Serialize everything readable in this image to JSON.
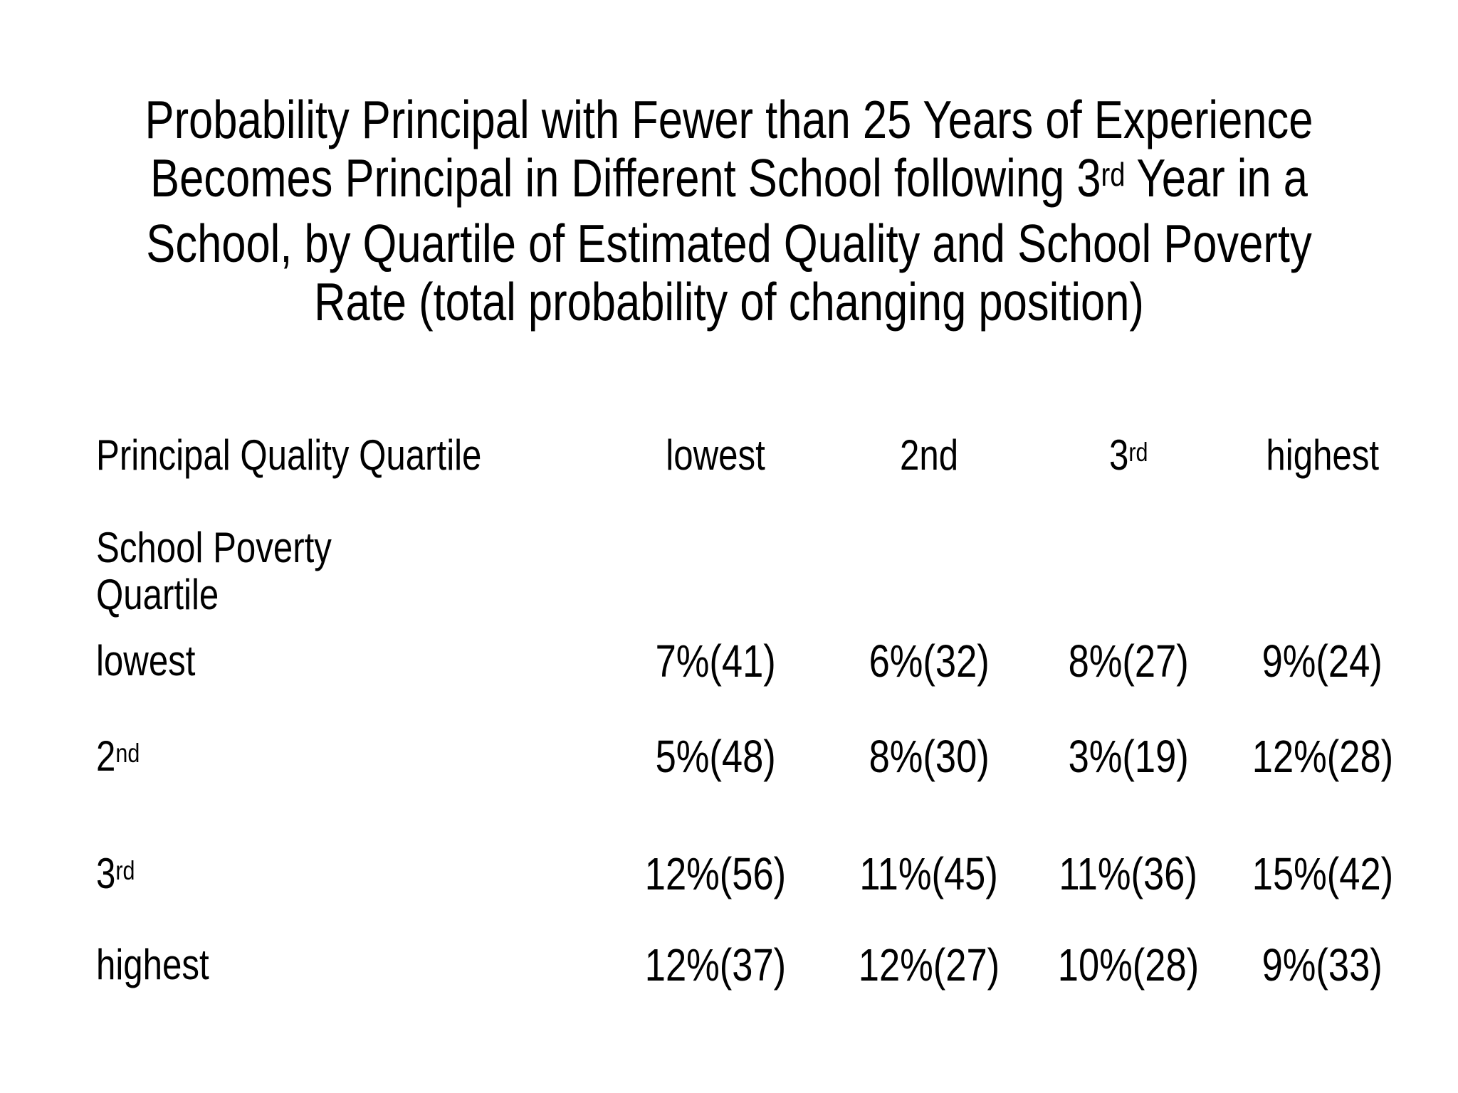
{
  "slide": {
    "background_color": "#ffffff",
    "text_color": "#000000"
  },
  "title": {
    "line1": "Probability Principal with Fewer than 25 Years of Experience",
    "line2_pre": "Becomes Principal in Different School following 3",
    "line2_sup": "rd",
    "line2_post": " Year in a",
    "line3": "School, by Quartile of Estimated Quality and School Poverty",
    "line4": "Rate (total probability of changing position)"
  },
  "table": {
    "header": {
      "row_label": "Principal Quality Quartile",
      "col1": "lowest",
      "col2": "2nd",
      "col3_base": "3",
      "col3_sup": "rd",
      "col4": "highest"
    },
    "row_group_label": {
      "line1": "School Poverty",
      "line2": "Quartile"
    },
    "rows": [
      {
        "label": "lowest",
        "label_sup": "",
        "values": [
          "7%(41)",
          "6%(32)",
          "8%(27)",
          "9%(24)"
        ]
      },
      {
        "label": "2",
        "label_sup": "nd",
        "values": [
          "5%(48)",
          "8%(30)",
          "3%(19)",
          "12%(28)"
        ]
      },
      {
        "label": "3",
        "label_sup": "rd",
        "values": [
          "12%(56)",
          "11%(45)",
          "11%(36)",
          "15%(42)"
        ]
      },
      {
        "label": "highest",
        "label_sup": "",
        "values": [
          "12%(37)",
          "12%(27)",
          "10%(28)",
          "9%(33)"
        ]
      }
    ]
  },
  "chart_data": {
    "type": "table",
    "title": "Probability Principal with Fewer than 25 Years of Experience Becomes Principal in Different School following 3rd Year in a School, by Quartile of Estimated Quality and School Poverty Rate (total probability of changing position)",
    "column_header_label": "Principal Quality Quartile",
    "columns": [
      "lowest",
      "2nd",
      "3rd",
      "highest"
    ],
    "row_header_label": "School Poverty Quartile",
    "row_categories": [
      "lowest",
      "2nd",
      "3rd",
      "highest"
    ],
    "cells": [
      [
        "7%(41)",
        "6%(32)",
        "8%(27)",
        "9%(24)"
      ],
      [
        "5%(48)",
        "8%(30)",
        "3%(19)",
        "12%(28)"
      ],
      [
        "12%(56)",
        "11%(45)",
        "11%(36)",
        "15%(42)"
      ],
      [
        "12%(37)",
        "12%(27)",
        "10%(28)",
        "9%(33)"
      ]
    ]
  }
}
